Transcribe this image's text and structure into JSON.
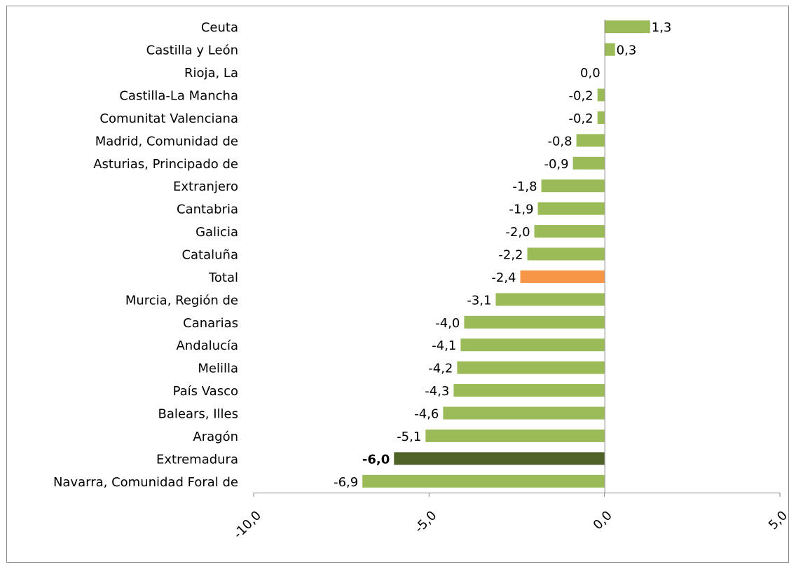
{
  "chart_data": {
    "type": "bar",
    "orientation": "horizontal",
    "categories": [
      "Ceuta",
      "Castilla y León",
      "Rioja, La",
      "Castilla-La Mancha",
      "Comunitat Valenciana",
      "Madrid, Comunidad de",
      "Asturias, Principado de",
      "Extranjero",
      "Cantabria",
      "Galicia",
      "Cataluña",
      "Total",
      "Murcia, Región de",
      "Canarias",
      "Andalucía",
      "Melilla",
      "País Vasco",
      "Balears, Illes",
      "Aragón",
      "Extremadura",
      "Navarra, Comunidad Foral de"
    ],
    "values": [
      1.3,
      0.3,
      0.0,
      -0.2,
      -0.2,
      -0.8,
      -0.9,
      -1.8,
      -1.9,
      -2.0,
      -2.2,
      -2.4,
      -3.1,
      -4.0,
      -4.1,
      -4.2,
      -4.3,
      -4.6,
      -5.1,
      -6.0,
      -6.9
    ],
    "value_labels": [
      "1,3",
      "0,3",
      "0,0",
      "-0,2",
      "-0,2",
      "-0,8",
      "-0,9",
      "-1,8",
      "-1,9",
      "-2,0",
      "-2,2",
      "-2,4",
      "-3,1",
      "-4,0",
      "-4,1",
      "-4,2",
      "-4,3",
      "-4,6",
      "-5,1",
      "-6,0",
      "-6,9"
    ],
    "colors": [
      "#9bbb59",
      "#9bbb59",
      "#9bbb59",
      "#9bbb59",
      "#9bbb59",
      "#9bbb59",
      "#9bbb59",
      "#9bbb59",
      "#9bbb59",
      "#9bbb59",
      "#9bbb59",
      "#f79646",
      "#9bbb59",
      "#9bbb59",
      "#9bbb59",
      "#9bbb59",
      "#9bbb59",
      "#9bbb59",
      "#9bbb59",
      "#4f6228",
      "#9bbb59"
    ],
    "label_weights": [
      "normal",
      "normal",
      "normal",
      "normal",
      "normal",
      "normal",
      "normal",
      "normal",
      "normal",
      "normal",
      "normal",
      "normal",
      "normal",
      "normal",
      "normal",
      "normal",
      "normal",
      "normal",
      "normal",
      "bold",
      "normal"
    ],
    "xlim": [
      -10,
      5
    ],
    "xticks": [
      {
        "value": -10,
        "label": "-10,0"
      },
      {
        "value": -5,
        "label": "-5,0"
      },
      {
        "value": 0,
        "label": "0,0"
      },
      {
        "value": 5,
        "label": "5,0"
      }
    ]
  }
}
